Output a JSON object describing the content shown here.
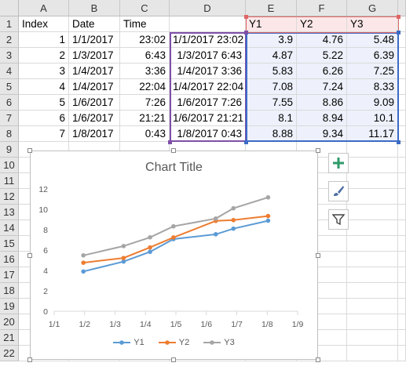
{
  "columns": [
    "A",
    "B",
    "C",
    "D",
    "E",
    "F",
    "G"
  ],
  "rows": [
    "1",
    "2",
    "3",
    "4",
    "5",
    "6",
    "7",
    "8",
    "9",
    "10",
    "11",
    "12",
    "13",
    "14",
    "15",
    "16",
    "17",
    "18",
    "19",
    "20",
    "21",
    "22"
  ],
  "headers": [
    "Index",
    "Date",
    "Time",
    "",
    "Y1",
    "Y2",
    "Y3"
  ],
  "table": [
    {
      "index": "1",
      "date": "1/1/2017",
      "time": "23:02",
      "datetime": "1/1/2017 23:02",
      "y1": "3.9",
      "y2": "4.76",
      "y3": "5.48"
    },
    {
      "index": "2",
      "date": "1/3/2017",
      "time": "6:43",
      "datetime": "1/3/2017 6:43",
      "y1": "4.87",
      "y2": "5.22",
      "y3": "6.39"
    },
    {
      "index": "3",
      "date": "1/4/2017",
      "time": "3:36",
      "datetime": "1/4/2017 3:36",
      "y1": "5.83",
      "y2": "6.26",
      "y3": "7.25"
    },
    {
      "index": "4",
      "date": "1/4/2017",
      "time": "22:04",
      "datetime": "1/4/2017 22:04",
      "y1": "7.08",
      "y2": "7.24",
      "y3": "8.33"
    },
    {
      "index": "5",
      "date": "1/6/2017",
      "time": "7:26",
      "datetime": "1/6/2017 7:26",
      "y1": "7.55",
      "y2": "8.86",
      "y3": "9.09"
    },
    {
      "index": "6",
      "date": "1/6/2017",
      "time": "21:21",
      "datetime": "1/6/2017 21:21",
      "y1": "8.1",
      "y2": "8.94",
      "y3": "10.1"
    },
    {
      "index": "7",
      "date": "1/8/2017",
      "time": "0:43",
      "datetime": "1/8/2017 0:43",
      "y1": "8.88",
      "y2": "9.34",
      "y3": "11.17"
    }
  ],
  "chart_data": {
    "type": "line",
    "title": "Chart Title",
    "x": [
      "1/1/2017 23:02",
      "1/3/2017 6:43",
      "1/4/2017 3:36",
      "1/4/2017 22:04",
      "1/6/2017 7:26",
      "1/6/2017 21:21",
      "1/8/2017 0:43"
    ],
    "series": [
      {
        "name": "Y1",
        "color": "#5b9bd5",
        "values": [
          3.9,
          4.87,
          5.83,
          7.08,
          7.55,
          8.1,
          8.88
        ]
      },
      {
        "name": "Y2",
        "color": "#ed7d31",
        "values": [
          4.76,
          5.22,
          6.26,
          7.24,
          8.86,
          8.94,
          9.34
        ]
      },
      {
        "name": "Y3",
        "color": "#a5a5a5",
        "values": [
          5.48,
          6.39,
          7.25,
          8.33,
          9.09,
          10.1,
          11.17
        ]
      }
    ],
    "ylim": [
      0,
      12
    ],
    "yticks": [
      "0",
      "2",
      "4",
      "6",
      "8",
      "10",
      "12"
    ],
    "xticks": [
      "1/1",
      "1/2",
      "1/3",
      "1/4",
      "1/5",
      "1/6",
      "1/7",
      "1/8",
      "1/9"
    ],
    "xlim": [
      "1/1/2017",
      "1/9/2017"
    ],
    "legend": "bottom",
    "grid": false
  },
  "side_buttons": [
    {
      "name": "chart-elements-button",
      "icon": "plus-icon"
    },
    {
      "name": "chart-styles-button",
      "icon": "paintbrush-icon"
    },
    {
      "name": "chart-filters-button",
      "icon": "filter-icon"
    }
  ]
}
